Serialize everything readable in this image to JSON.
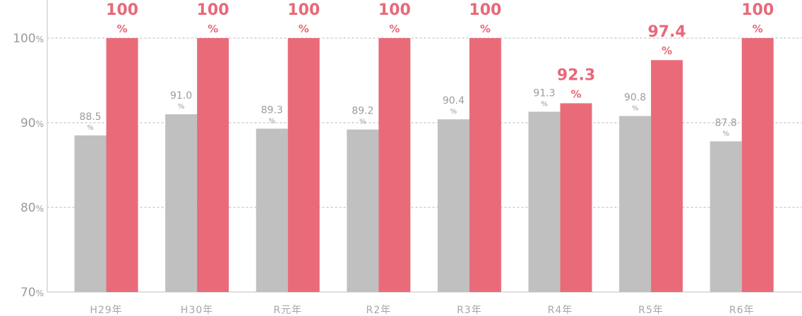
{
  "chart_data": {
    "type": "bar",
    "categories": [
      "H29年",
      "H30年",
      "R元年",
      "R2年",
      "R3年",
      "R4年",
      "R5年",
      "R6年"
    ],
    "series": [
      {
        "values": [
          88.5,
          91.0,
          89.3,
          89.2,
          90.4,
          91.3,
          90.8,
          87.8
        ],
        "labels": [
          "88.5",
          "91.0",
          "89.3",
          "89.2",
          "90.4",
          "91.3",
          "90.8",
          "87.8"
        ]
      },
      {
        "values": [
          100,
          100,
          100,
          100,
          100,
          92.3,
          97.4,
          100
        ],
        "labels": [
          "100",
          "100",
          "100",
          "100",
          "100",
          "92.3",
          "97.4",
          "100"
        ]
      }
    ],
    "unit": "%",
    "ylim": [
      70,
      100
    ],
    "yticks": [
      {
        "value": 70,
        "label": "70"
      },
      {
        "value": 80,
        "label": "80"
      },
      {
        "value": 90,
        "label": "90"
      },
      {
        "value": 100,
        "label": "100"
      }
    ],
    "grid": true,
    "colors": {
      "series0": "#c0c0c0",
      "series1": "#e96b79",
      "grid": "#cfcfcf",
      "axis": "#d6d6d6"
    }
  }
}
